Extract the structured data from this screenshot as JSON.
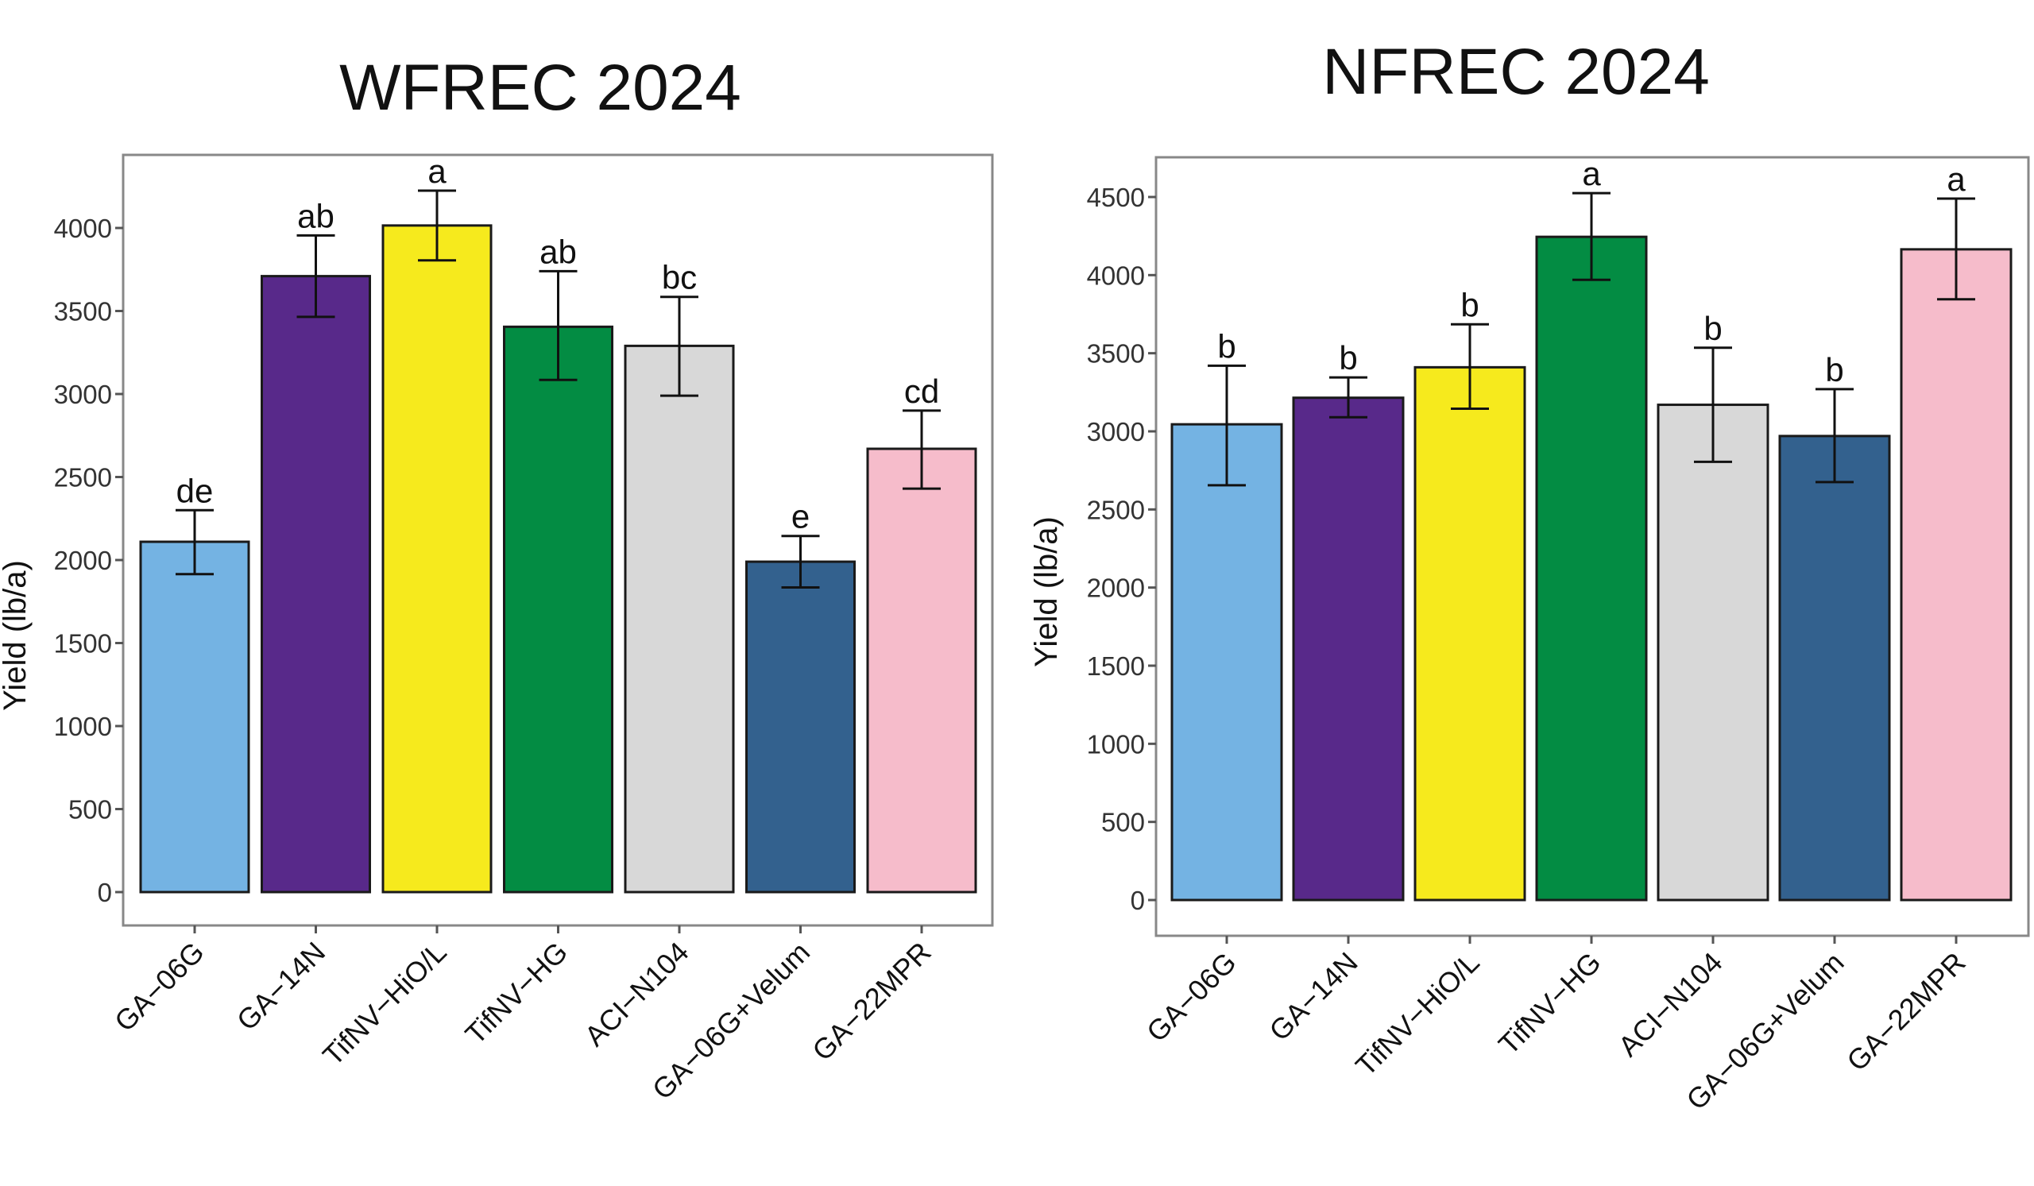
{
  "chart_data": [
    {
      "type": "bar",
      "title": "WFREC 2024",
      "xlabel": "",
      "ylabel": "Yield (lb/a)",
      "ylim": [
        0,
        4350
      ],
      "yticks": [
        0,
        500,
        1000,
        1500,
        2000,
        2500,
        3000,
        3500,
        4000
      ],
      "grid": false,
      "categories": [
        "GA−06G",
        "GA−14N",
        "TifNV−HiO/L",
        "TifNV−HG",
        "ACI−N104",
        "GA−06G+Velum",
        "GA−22MPR"
      ],
      "values": [
        2110,
        3710,
        4015,
        3405,
        3290,
        1990,
        2670
      ],
      "error_low": [
        1915,
        3465,
        3805,
        3085,
        2990,
        1835,
        2430
      ],
      "error_high": [
        2300,
        3955,
        4225,
        3740,
        3585,
        2145,
        2900
      ],
      "letters": [
        "de",
        "ab",
        "a",
        "ab",
        "bc",
        "e",
        "cd"
      ],
      "colors": [
        "#74b3e3",
        "#58298a",
        "#f6ea1d",
        "#038c43",
        "#d8d8d8",
        "#33618e",
        "#f6bccb"
      ]
    },
    {
      "type": "bar",
      "title": "NFREC 2024",
      "xlabel": "",
      "ylabel": "Yield (lb/a)",
      "ylim": [
        0,
        4700
      ],
      "yticks": [
        0,
        500,
        1000,
        1500,
        2000,
        2500,
        3000,
        3500,
        4000,
        4500
      ],
      "grid": false,
      "categories": [
        "GA−06G",
        "GA−14N",
        "TifNV−HiO/L",
        "TifNV−HG",
        "ACI−N104",
        "GA−06G+Velum",
        "GA−22MPR"
      ],
      "values": [
        3045,
        3215,
        3410,
        4245,
        3170,
        2970,
        4165
      ],
      "error_low": [
        2655,
        3090,
        3145,
        3970,
        2805,
        2675,
        3845
      ],
      "error_high": [
        3420,
        3345,
        3685,
        4525,
        3535,
        3270,
        4490
      ],
      "letters": [
        "b",
        "b",
        "b",
        "a",
        "b",
        "b",
        "a"
      ],
      "colors": [
        "#74b3e3",
        "#58298a",
        "#f6ea1d",
        "#038c43",
        "#d8d8d8",
        "#33618e",
        "#f6bccb"
      ]
    }
  ]
}
